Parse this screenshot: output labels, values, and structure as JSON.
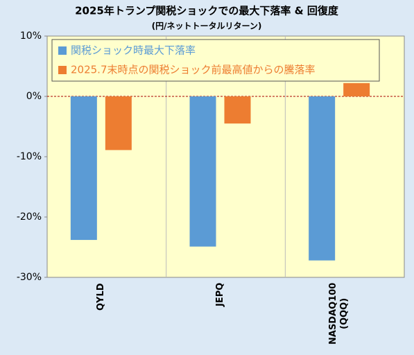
{
  "chart_data": {
    "type": "bar",
    "title": "2025年トランプ関税ショックでの最大下落率 & 回復度",
    "subtitle": "(円/ネットトータルリターン)",
    "categories": [
      "QYLD",
      "JEPQ",
      "NASDAQ100\n(QQQ)"
    ],
    "series": [
      {
        "name": "関税ショック時最大下落率",
        "color": "#5b9bd5",
        "values": [
          -23.8,
          -24.9,
          -27.2
        ]
      },
      {
        "name": "2025.7末時点の関税ショック前最高値からの騰落率",
        "color": "#ed7d31",
        "values": [
          -8.9,
          -4.5,
          2.2
        ]
      }
    ],
    "ylim": [
      -30,
      10
    ],
    "yticks": [
      {
        "value": -30,
        "label": "-30%"
      },
      {
        "value": -20,
        "label": "-20%"
      },
      {
        "value": -10,
        "label": "-10%"
      },
      {
        "value": 0,
        "label": "0%"
      },
      {
        "value": 10,
        "label": "10%"
      }
    ],
    "legend": "top-left"
  }
}
